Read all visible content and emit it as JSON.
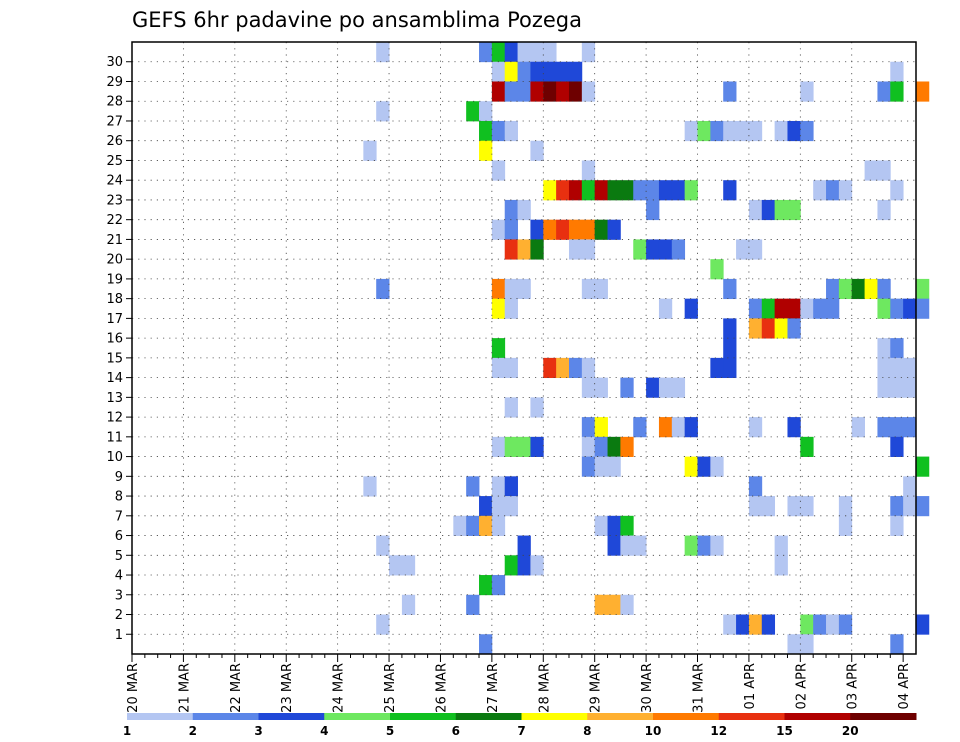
{
  "chart_data": {
    "type": "heatmap",
    "title": "GEFS 6hr padavine po ansamblima Pozega",
    "xlabel": "",
    "ylabel": "",
    "y_categories": [
      "1",
      "2",
      "3",
      "4",
      "5",
      "6",
      "7",
      "8",
      "9",
      "10",
      "11",
      "12",
      "13",
      "14",
      "15",
      "16",
      "17",
      "18",
      "19",
      "20",
      "21",
      "22",
      "23",
      "24",
      "25",
      "26",
      "27",
      "28",
      "29",
      "30"
    ],
    "x_tick_labels": [
      "20 MAR",
      "21 MAR",
      "22 MAR",
      "23 MAR",
      "24 MAR",
      "25 MAR",
      "26 MAR",
      "27 MAR",
      "28 MAR",
      "29 MAR",
      "30 MAR",
      "31 MAR",
      "01 APR",
      "02 APR",
      "03 APR",
      "04 APR"
    ],
    "time_steps": 61,
    "grid": true,
    "legend": {
      "position": "bottom",
      "labels": [
        "1",
        "2",
        "3",
        "4",
        "5",
        "6",
        "7",
        "8",
        "10",
        "12",
        "15",
        "20"
      ],
      "colors": [
        "#b4c6f2",
        "#5c86e8",
        "#1f48d8",
        "#6ee860",
        "#10c020",
        "#0a7a10",
        "#ffff00",
        "#ffb030",
        "#ff7a00",
        "#e83010",
        "#b00000",
        "#6e0000"
      ]
    },
    "cells": [
      [
        30,
        19,
        1
      ],
      [
        30,
        27,
        2
      ],
      [
        30,
        28,
        5
      ],
      [
        30,
        29,
        3
      ],
      [
        30,
        30,
        1
      ],
      [
        30,
        31,
        1
      ],
      [
        30,
        32,
        1
      ],
      [
        30,
        35,
        1
      ],
      [
        29,
        28,
        1
      ],
      [
        29,
        29,
        7
      ],
      [
        29,
        30,
        2
      ],
      [
        29,
        31,
        3
      ],
      [
        29,
        32,
        3
      ],
      [
        29,
        33,
        3
      ],
      [
        29,
        34,
        3
      ],
      [
        29,
        59,
        1
      ],
      [
        28,
        28,
        11
      ],
      [
        28,
        29,
        2
      ],
      [
        28,
        30,
        2
      ],
      [
        28,
        31,
        11
      ],
      [
        28,
        32,
        12
      ],
      [
        28,
        33,
        11
      ],
      [
        28,
        34,
        12
      ],
      [
        28,
        35,
        1
      ],
      [
        28,
        46,
        2
      ],
      [
        28,
        52,
        1
      ],
      [
        28,
        58,
        2
      ],
      [
        28,
        59,
        5
      ],
      [
        28,
        61,
        9
      ],
      [
        27,
        19,
        1
      ],
      [
        27,
        26,
        5
      ],
      [
        27,
        27,
        1
      ],
      [
        26,
        27,
        5
      ],
      [
        26,
        28,
        2
      ],
      [
        26,
        29,
        1
      ],
      [
        26,
        43,
        1
      ],
      [
        26,
        44,
        4
      ],
      [
        26,
        45,
        2
      ],
      [
        26,
        46,
        1
      ],
      [
        26,
        47,
        1
      ],
      [
        26,
        48,
        1
      ],
      [
        26,
        50,
        1
      ],
      [
        26,
        51,
        3
      ],
      [
        26,
        52,
        2
      ],
      [
        25,
        18,
        1
      ],
      [
        25,
        27,
        7
      ],
      [
        25,
        31,
        1
      ],
      [
        24,
        28,
        1
      ],
      [
        24,
        35,
        1
      ],
      [
        24,
        57,
        1
      ],
      [
        24,
        58,
        1
      ],
      [
        23,
        32,
        7
      ],
      [
        23,
        33,
        10
      ],
      [
        23,
        34,
        11
      ],
      [
        23,
        35,
        5
      ],
      [
        23,
        36,
        11
      ],
      [
        23,
        37,
        6
      ],
      [
        23,
        38,
        6
      ],
      [
        23,
        39,
        2
      ],
      [
        23,
        40,
        2
      ],
      [
        23,
        41,
        3
      ],
      [
        23,
        42,
        3
      ],
      [
        23,
        43,
        4
      ],
      [
        23,
        46,
        3
      ],
      [
        23,
        53,
        1
      ],
      [
        23,
        54,
        2
      ],
      [
        23,
        55,
        1
      ],
      [
        23,
        59,
        1
      ],
      [
        22,
        29,
        2
      ],
      [
        22,
        30,
        1
      ],
      [
        22,
        40,
        2
      ],
      [
        22,
        48,
        1
      ],
      [
        22,
        49,
        3
      ],
      [
        22,
        50,
        4
      ],
      [
        22,
        51,
        4
      ],
      [
        22,
        58,
        1
      ],
      [
        21,
        28,
        1
      ],
      [
        21,
        29,
        2
      ],
      [
        21,
        31,
        3
      ],
      [
        21,
        32,
        9
      ],
      [
        21,
        33,
        10
      ],
      [
        21,
        34,
        9
      ],
      [
        21,
        35,
        9
      ],
      [
        21,
        36,
        6
      ],
      [
        21,
        37,
        3
      ],
      [
        20,
        29,
        10
      ],
      [
        20,
        30,
        8
      ],
      [
        20,
        31,
        6
      ],
      [
        20,
        34,
        1
      ],
      [
        20,
        35,
        1
      ],
      [
        20,
        39,
        4
      ],
      [
        20,
        40,
        3
      ],
      [
        20,
        41,
        3
      ],
      [
        20,
        42,
        2
      ],
      [
        20,
        47,
        1
      ],
      [
        20,
        48,
        1
      ],
      [
        19,
        45,
        4
      ],
      [
        18,
        19,
        2
      ],
      [
        18,
        28,
        9
      ],
      [
        18,
        29,
        1
      ],
      [
        18,
        30,
        1
      ],
      [
        18,
        35,
        1
      ],
      [
        18,
        36,
        1
      ],
      [
        18,
        46,
        2
      ],
      [
        18,
        54,
        2
      ],
      [
        18,
        55,
        4
      ],
      [
        18,
        56,
        6
      ],
      [
        18,
        57,
        7
      ],
      [
        18,
        58,
        2
      ],
      [
        18,
        61,
        4
      ],
      [
        17,
        28,
        7
      ],
      [
        17,
        29,
        1
      ],
      [
        17,
        41,
        1
      ],
      [
        17,
        43,
        3
      ],
      [
        17,
        48,
        2
      ],
      [
        17,
        49,
        5
      ],
      [
        17,
        50,
        11
      ],
      [
        17,
        51,
        11
      ],
      [
        17,
        52,
        1
      ],
      [
        17,
        53,
        2
      ],
      [
        17,
        54,
        2
      ],
      [
        17,
        58,
        4
      ],
      [
        17,
        59,
        2
      ],
      [
        17,
        60,
        3
      ],
      [
        17,
        61,
        2
      ],
      [
        16,
        46,
        3
      ],
      [
        16,
        48,
        8
      ],
      [
        16,
        49,
        10
      ],
      [
        16,
        50,
        7
      ],
      [
        16,
        51,
        2
      ],
      [
        15,
        28,
        5
      ],
      [
        15,
        46,
        3
      ],
      [
        15,
        58,
        1
      ],
      [
        15,
        59,
        2
      ],
      [
        14,
        28,
        1
      ],
      [
        14,
        29,
        1
      ],
      [
        14,
        32,
        10
      ],
      [
        14,
        33,
        8
      ],
      [
        14,
        34,
        2
      ],
      [
        14,
        35,
        1
      ],
      [
        14,
        45,
        3
      ],
      [
        14,
        46,
        3
      ],
      [
        14,
        58,
        1
      ],
      [
        14,
        59,
        1
      ],
      [
        14,
        60,
        1
      ],
      [
        13,
        35,
        1
      ],
      [
        13,
        36,
        1
      ],
      [
        13,
        38,
        2
      ],
      [
        13,
        40,
        3
      ],
      [
        13,
        41,
        1
      ],
      [
        13,
        42,
        1
      ],
      [
        13,
        58,
        1
      ],
      [
        13,
        59,
        1
      ],
      [
        13,
        60,
        1
      ],
      [
        12,
        29,
        1
      ],
      [
        12,
        31,
        1
      ],
      [
        11,
        35,
        2
      ],
      [
        11,
        36,
        7
      ],
      [
        11,
        39,
        2
      ],
      [
        11,
        41,
        9
      ],
      [
        11,
        42,
        1
      ],
      [
        11,
        43,
        3
      ],
      [
        11,
        48,
        1
      ],
      [
        11,
        51,
        3
      ],
      [
        11,
        56,
        1
      ],
      [
        11,
        58,
        2
      ],
      [
        11,
        59,
        2
      ],
      [
        11,
        60,
        2
      ],
      [
        10,
        28,
        1
      ],
      [
        10,
        29,
        4
      ],
      [
        10,
        30,
        4
      ],
      [
        10,
        31,
        3
      ],
      [
        10,
        35,
        1
      ],
      [
        10,
        36,
        2
      ],
      [
        10,
        37,
        6
      ],
      [
        10,
        38,
        9
      ],
      [
        10,
        52,
        5
      ],
      [
        10,
        59,
        3
      ],
      [
        9,
        35,
        2
      ],
      [
        9,
        36,
        1
      ],
      [
        9,
        37,
        1
      ],
      [
        9,
        43,
        7
      ],
      [
        9,
        44,
        3
      ],
      [
        9,
        45,
        1
      ],
      [
        9,
        61,
        5
      ],
      [
        8,
        18,
        1
      ],
      [
        8,
        26,
        2
      ],
      [
        8,
        28,
        1
      ],
      [
        8,
        29,
        3
      ],
      [
        8,
        48,
        2
      ],
      [
        8,
        60,
        1
      ],
      [
        7,
        27,
        3
      ],
      [
        7,
        28,
        1
      ],
      [
        7,
        29,
        1
      ],
      [
        7,
        48,
        1
      ],
      [
        7,
        49,
        1
      ],
      [
        7,
        51,
        1
      ],
      [
        7,
        52,
        1
      ],
      [
        7,
        55,
        1
      ],
      [
        7,
        59,
        2
      ],
      [
        7,
        60,
        1
      ],
      [
        7,
        61,
        2
      ],
      [
        6,
        25,
        1
      ],
      [
        6,
        26,
        2
      ],
      [
        6,
        27,
        8
      ],
      [
        6,
        28,
        1
      ],
      [
        6,
        36,
        1
      ],
      [
        6,
        37,
        3
      ],
      [
        6,
        38,
        5
      ],
      [
        6,
        55,
        1
      ],
      [
        6,
        59,
        1
      ],
      [
        5,
        19,
        1
      ],
      [
        5,
        30,
        3
      ],
      [
        5,
        37,
        3
      ],
      [
        5,
        38,
        1
      ],
      [
        5,
        39,
        1
      ],
      [
        5,
        43,
        4
      ],
      [
        5,
        44,
        2
      ],
      [
        5,
        45,
        1
      ],
      [
        5,
        50,
        1
      ],
      [
        4,
        20,
        1
      ],
      [
        4,
        21,
        1
      ],
      [
        4,
        29,
        5
      ],
      [
        4,
        30,
        3
      ],
      [
        4,
        31,
        1
      ],
      [
        4,
        50,
        1
      ],
      [
        3,
        27,
        5
      ],
      [
        3,
        28,
        2
      ],
      [
        2,
        21,
        1
      ],
      [
        2,
        26,
        2
      ],
      [
        2,
        36,
        8
      ],
      [
        2,
        37,
        8
      ],
      [
        2,
        38,
        1
      ],
      [
        1,
        19,
        1
      ],
      [
        1,
        46,
        1
      ],
      [
        1,
        47,
        3
      ],
      [
        1,
        48,
        8
      ],
      [
        1,
        49,
        3
      ],
      [
        1,
        52,
        4
      ],
      [
        1,
        53,
        2
      ],
      [
        1,
        54,
        1
      ],
      [
        1,
        55,
        2
      ],
      [
        1,
        61,
        3
      ],
      [
        0,
        27,
        2
      ],
      [
        0,
        51,
        1
      ],
      [
        0,
        52,
        1
      ],
      [
        0,
        59,
        2
      ]
    ]
  }
}
